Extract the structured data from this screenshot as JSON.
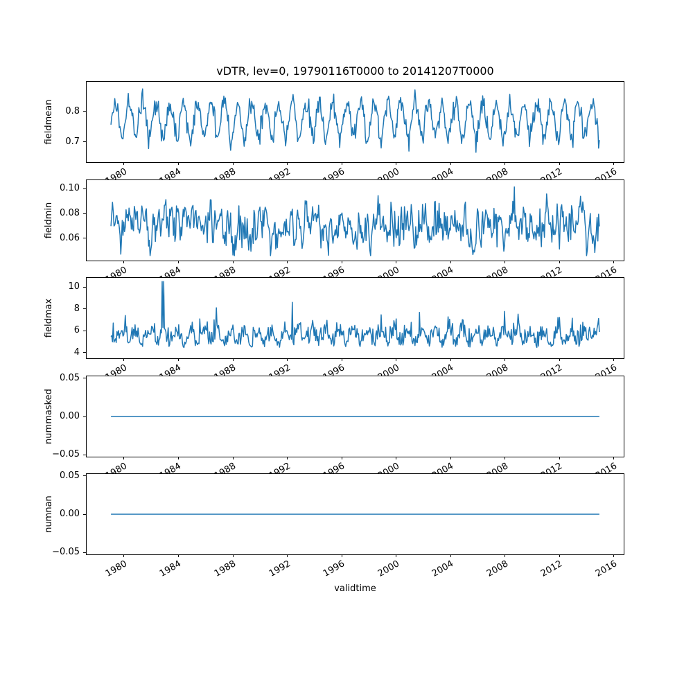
{
  "figure": {
    "title": "vDTR, lev=0, 19790116T0000 to 20141207T0000",
    "xlabel": "validtime",
    "background": "#ffffff",
    "axis_color": "#000000",
    "text_color": "#000000",
    "line_color": "#1f77b4"
  },
  "chart_data": {
    "type": "line",
    "title": "vDTR, lev=0, 19790116T0000 to 20141207T0000",
    "xlabel": "validtime",
    "legend": "none",
    "grid": false,
    "n_points": 650,
    "x_start": 1979.04,
    "x_end": 2014.93,
    "xlim": [
      1977.25,
      2016.72
    ],
    "x_tick_values": [
      1980,
      1984,
      1988,
      1992,
      1996,
      2000,
      2004,
      2008,
      2012,
      2016
    ],
    "x_tick_labels": [
      "1980",
      "1984",
      "1988",
      "1992",
      "1996",
      "2000",
      "2004",
      "2008",
      "2012",
      "2016"
    ],
    "x_tick_rotation_deg": 30,
    "subplots": [
      {
        "ylabel": "fieldmean",
        "ylim": [
          0.633,
          0.897
        ],
        "ytick_values": [
          0.7,
          0.8
        ],
        "ytick_labels": [
          "0.7",
          "0.8"
        ],
        "series": {
          "kind": "seasonal_noise",
          "seed": 20250,
          "base": 0.777,
          "seasonal_amplitude": 0.05,
          "seasonal_phase": 0.12,
          "trough_extra_dip": 0.028,
          "noise_sd": 0.017,
          "observed_min": 0.646,
          "observed_max": 0.887,
          "period_years": 1
        }
      },
      {
        "ylabel": "fieldmin",
        "ylim": [
          0.042,
          0.107
        ],
        "ytick_values": [
          0.06,
          0.08,
          0.1
        ],
        "ytick_labels": [
          "0.06",
          "0.08",
          "0.10"
        ],
        "series": {
          "kind": "autocorrelated_noise",
          "seed": 9107,
          "base": 0.0705,
          "ar_coeff": 0.55,
          "noise_sd": 0.0075,
          "micro_noise_sd": 0.004,
          "observed_min": 0.046,
          "observed_max": 0.104
        }
      },
      {
        "ylabel": "fieldmax",
        "ylim": [
          3.47,
          10.83
        ],
        "ytick_values": [
          4,
          6,
          8,
          10
        ],
        "ytick_labels": [
          "4",
          "6",
          "8",
          "10"
        ],
        "series": {
          "kind": "spiky_noise",
          "seed": 4242,
          "base": 4.95,
          "half_normal_scale": 0.85,
          "seasonal_amplitude": 0.5,
          "seasonal_phase": 0.62,
          "spike_probability": 0.015,
          "spike_min": 1.8,
          "spike_extra": 3.2,
          "observed_min": 3.85,
          "observed_max": 10.5
        }
      },
      {
        "ylabel": "nummasked",
        "ylim": [
          -0.0525,
          0.0525
        ],
        "ytick_values": [
          -0.05,
          0.0,
          0.05
        ],
        "ytick_labels": [
          "−0.05",
          "0.00",
          "0.05"
        ],
        "series": {
          "kind": "constant",
          "value": 0.0
        }
      },
      {
        "ylabel": "numnan",
        "ylim": [
          -0.0525,
          0.0525
        ],
        "ytick_values": [
          -0.05,
          0.0,
          0.05
        ],
        "ytick_labels": [
          "−0.05",
          "0.00",
          "0.05"
        ],
        "series": {
          "kind": "constant",
          "value": 0.0
        }
      }
    ]
  }
}
